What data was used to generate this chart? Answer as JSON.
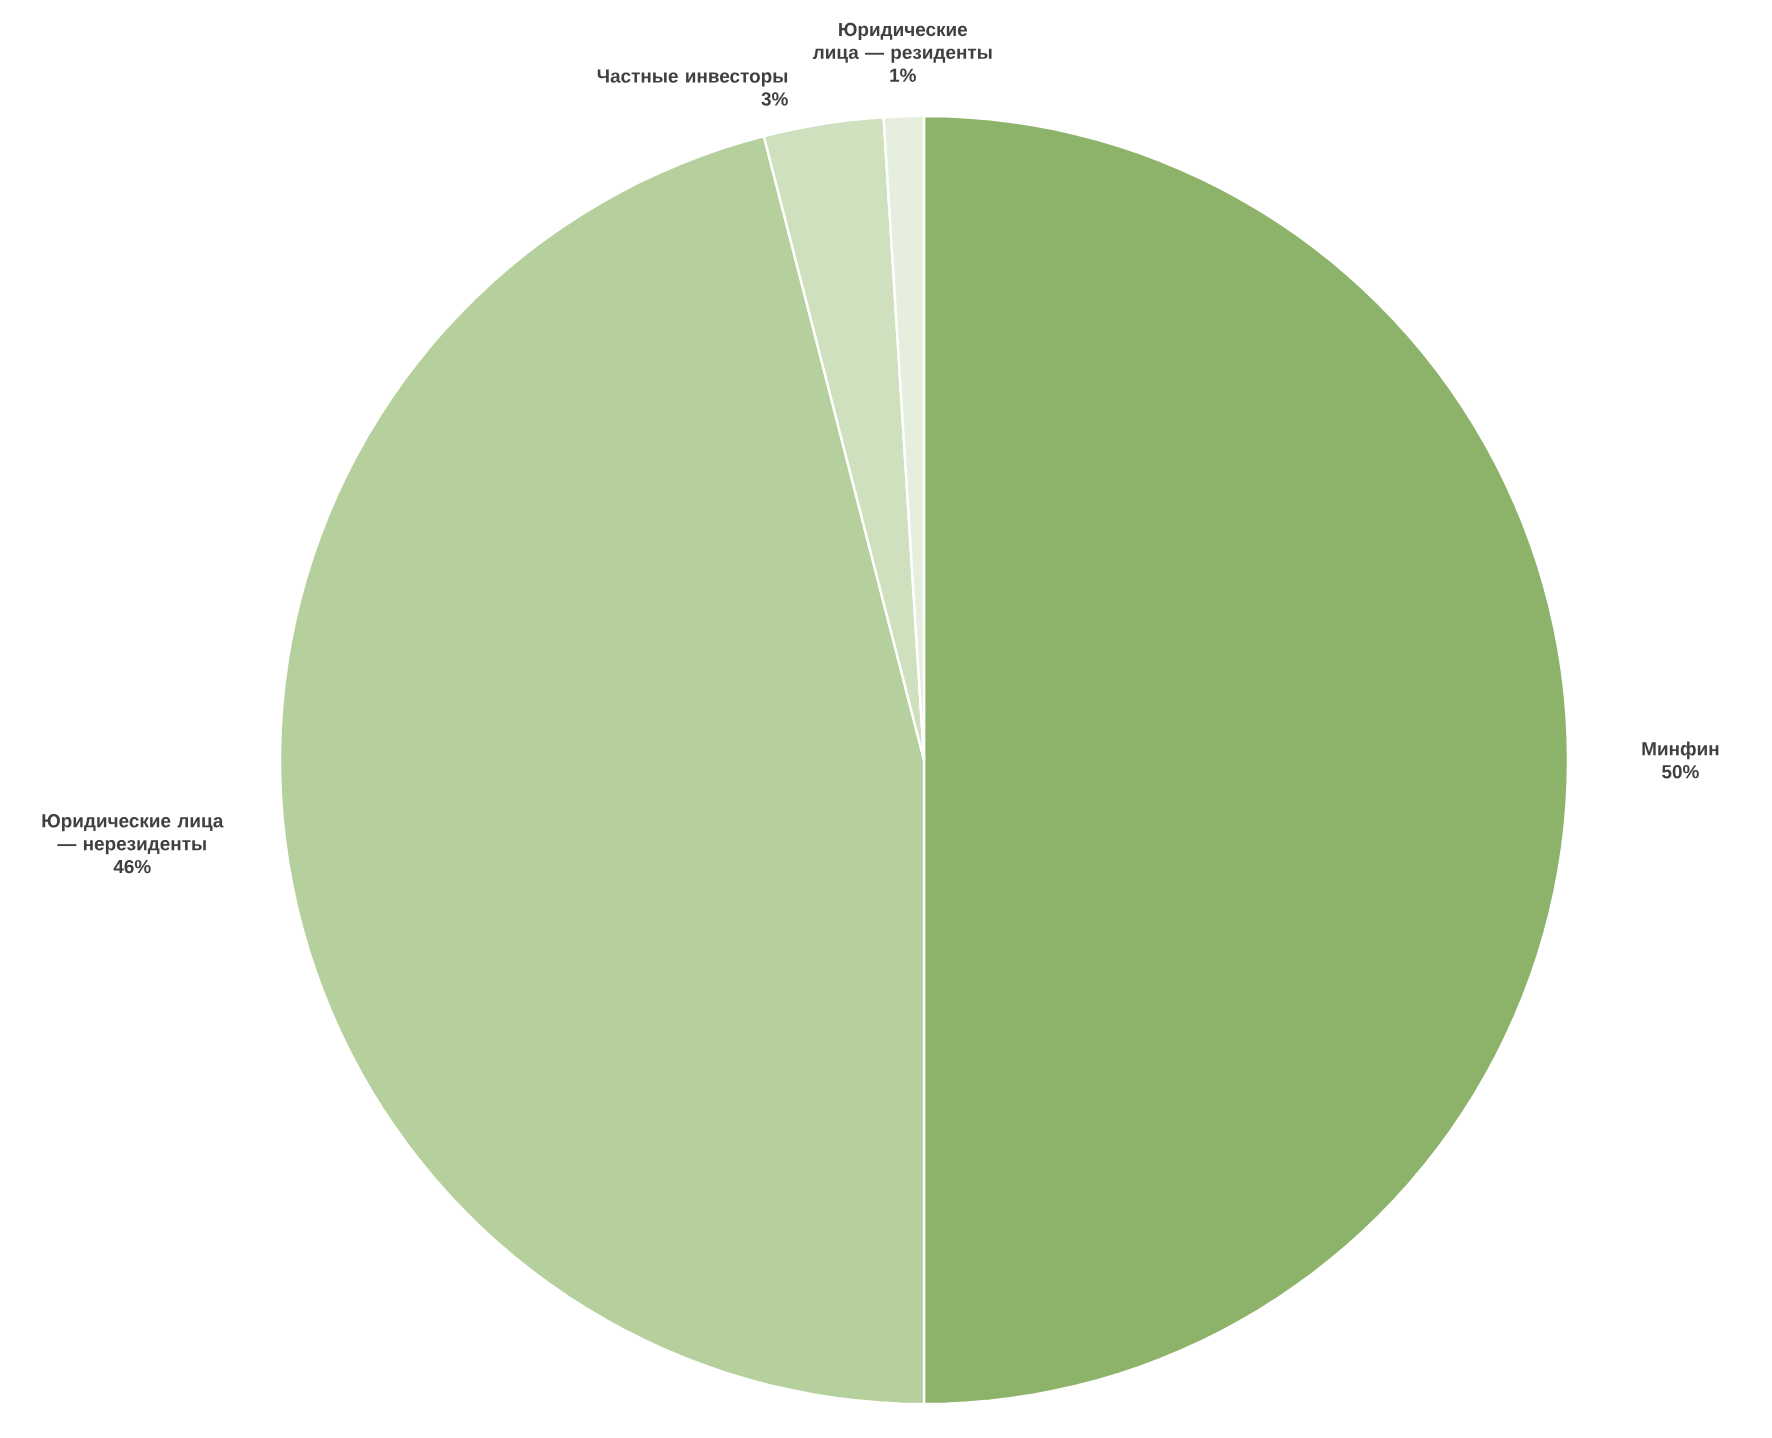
{
  "chart_data": {
    "type": "pie",
    "categories": [
      "Минфин",
      "Юридические лица — нерезиденты",
      "Частные инвесторы",
      "Юридические лица — резиденты"
    ],
    "values": [
      50,
      46,
      3,
      1
    ],
    "value_labels": [
      "50%",
      "46%",
      "3%",
      "1%"
    ],
    "colors": [
      "#8db36a",
      "#b5d09c",
      "#cfe0bf",
      "#e6efdd"
    ]
  }
}
